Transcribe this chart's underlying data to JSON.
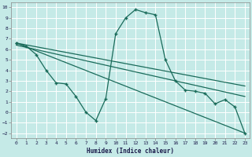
{
  "title": "",
  "xlabel": "Humidex (Indice chaleur)",
  "bg_color": "#c5eae7",
  "grid_color": "#ffffff",
  "line_color": "#1a6b5a",
  "xlim": [
    -0.5,
    23.5
  ],
  "ylim": [
    -2.5,
    10.5
  ],
  "xticks": [
    0,
    1,
    2,
    3,
    4,
    5,
    6,
    7,
    8,
    9,
    10,
    11,
    12,
    13,
    14,
    15,
    16,
    17,
    18,
    19,
    20,
    21,
    22,
    23
  ],
  "yticks": [
    -2,
    -1,
    0,
    1,
    2,
    3,
    4,
    5,
    6,
    7,
    8,
    9,
    10
  ],
  "curve_x": [
    0,
    1,
    2,
    3,
    4,
    5,
    6,
    7,
    8,
    9,
    10,
    11,
    12,
    13,
    14,
    15,
    16,
    17,
    18,
    19,
    20,
    21,
    22,
    23
  ],
  "curve_y": [
    6.6,
    6.3,
    5.5,
    4.0,
    2.8,
    2.7,
    1.5,
    0.0,
    -0.8,
    1.3,
    7.5,
    9.0,
    9.8,
    9.5,
    9.3,
    5.0,
    3.0,
    2.1,
    2.0,
    1.8,
    0.8,
    1.2,
    0.5,
    -2.0
  ],
  "line2_x": [
    0,
    10,
    23
  ],
  "line2_y": [
    6.6,
    5.2,
    2.5
  ],
  "line3_x": [
    0,
    23
  ],
  "line3_y": [
    6.6,
    -2.0
  ],
  "marker": "+",
  "markersize": 3.5,
  "linewidth": 0.9
}
